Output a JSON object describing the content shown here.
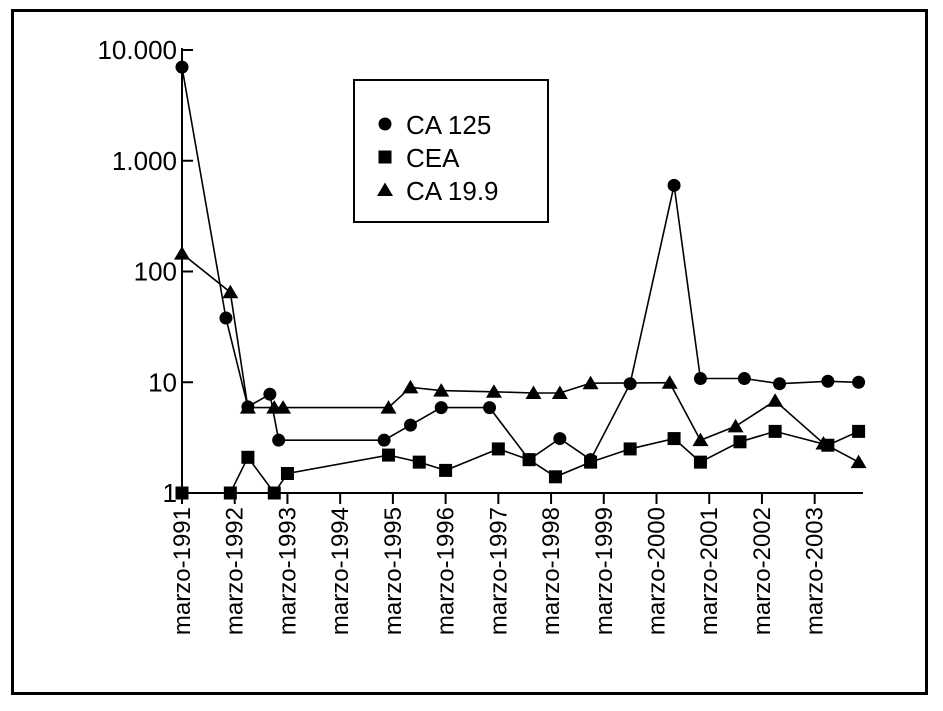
{
  "chart_data": {
    "type": "line",
    "title": "",
    "xlabel": "",
    "ylabel": "",
    "y_scale": "log",
    "ylim": [
      1,
      10000
    ],
    "y_tick_values": [
      1,
      10,
      100,
      1000,
      10000
    ],
    "y_tick_labels": [
      "1",
      "10",
      "100",
      "1.000",
      "10.000"
    ],
    "xlim": [
      "1991-03",
      "2004-02"
    ],
    "x_ticks": [
      {
        "date": "1991-03",
        "label": "marzo-1991"
      },
      {
        "date": "1992-03",
        "label": "marzo-1992"
      },
      {
        "date": "1993-03",
        "label": "marzo-1993"
      },
      {
        "date": "1994-03",
        "label": "marzo-1994"
      },
      {
        "date": "1995-03",
        "label": "marzo-1995"
      },
      {
        "date": "1996-03",
        "label": "marzo-1996"
      },
      {
        "date": "1997-03",
        "label": "marzo-1997"
      },
      {
        "date": "1998-03",
        "label": "marzo-1998"
      },
      {
        "date": "1999-03",
        "label": "marzo-1999"
      },
      {
        "date": "2000-03",
        "label": "marzo-2000"
      },
      {
        "date": "2001-03",
        "label": "marzo-2001"
      },
      {
        "date": "2002-03",
        "label": "marzo-2002"
      },
      {
        "date": "2003-03",
        "label": "marzo-2003"
      }
    ],
    "grid": false,
    "legend_position": "top-center",
    "series": [
      {
        "name": "CA 125",
        "marker": "circle",
        "points": [
          {
            "x": "1991-03",
            "y": 7000
          },
          {
            "x": "1992-01",
            "y": 38
          },
          {
            "x": "1992-06",
            "y": 6
          },
          {
            "x": "1992-11",
            "y": 7.8
          },
          {
            "x": "1993-01",
            "y": 3
          },
          {
            "x": "1995-01",
            "y": 3
          },
          {
            "x": "1995-07",
            "y": 4.1
          },
          {
            "x": "1996-02",
            "y": 5.9
          },
          {
            "x": "1997-01",
            "y": 5.9
          },
          {
            "x": "1997-10",
            "y": 2
          },
          {
            "x": "1998-05",
            "y": 3.1
          },
          {
            "x": "1998-12",
            "y": 2
          },
          {
            "x": "1999-09",
            "y": 9.7
          },
          {
            "x": "2000-07",
            "y": 600
          },
          {
            "x": "2001-01",
            "y": 10.8
          },
          {
            "x": "2001-11",
            "y": 10.8
          },
          {
            "x": "2002-07",
            "y": 9.7
          },
          {
            "x": "2003-06",
            "y": 10.2
          },
          {
            "x": "2004-01",
            "y": 10
          }
        ]
      },
      {
        "name": "CEA",
        "marker": "square",
        "points": [
          {
            "x": "1991-03",
            "y": 1
          },
          {
            "x": "1992-02",
            "y": 1
          },
          {
            "x": "1992-06",
            "y": 2.1
          },
          {
            "x": "1992-12",
            "y": 1
          },
          {
            "x": "1993-03",
            "y": 1.5
          },
          {
            "x": "1995-02",
            "y": 2.2
          },
          {
            "x": "1995-09",
            "y": 1.9
          },
          {
            "x": "1996-03",
            "y": 1.6
          },
          {
            "x": "1997-03",
            "y": 2.5
          },
          {
            "x": "1997-10",
            "y": 2
          },
          {
            "x": "1998-04",
            "y": 1.4
          },
          {
            "x": "1998-12",
            "y": 1.9
          },
          {
            "x": "1999-09",
            "y": 2.5
          },
          {
            "x": "2000-07",
            "y": 3.1
          },
          {
            "x": "2001-01",
            "y": 1.9
          },
          {
            "x": "2001-10",
            "y": 2.9
          },
          {
            "x": "2002-06",
            "y": 3.6
          },
          {
            "x": "2003-06",
            "y": 2.7
          },
          {
            "x": "2004-01",
            "y": 3.6
          }
        ]
      },
      {
        "name": "CA 19.9",
        "marker": "triangle",
        "points": [
          {
            "x": "1991-03",
            "y": 145
          },
          {
            "x": "1992-02",
            "y": 65
          },
          {
            "x": "1992-06",
            "y": 5.9
          },
          {
            "x": "1992-12",
            "y": 5.9
          },
          {
            "x": "1993-02",
            "y": 5.9
          },
          {
            "x": "1995-02",
            "y": 5.9
          },
          {
            "x": "1995-07",
            "y": 9
          },
          {
            "x": "1996-02",
            "y": 8.4
          },
          {
            "x": "1997-02",
            "y": 8.2
          },
          {
            "x": "1997-11",
            "y": 8
          },
          {
            "x": "1998-05",
            "y": 8
          },
          {
            "x": "1998-12",
            "y": 9.8
          },
          {
            "x": "2000-06",
            "y": 9.9
          },
          {
            "x": "2001-01",
            "y": 3
          },
          {
            "x": "2001-09",
            "y": 4
          },
          {
            "x": "2002-06",
            "y": 6.8
          },
          {
            "x": "2003-05",
            "y": 2.8
          },
          {
            "x": "2004-01",
            "y": 1.9
          }
        ]
      }
    ]
  }
}
